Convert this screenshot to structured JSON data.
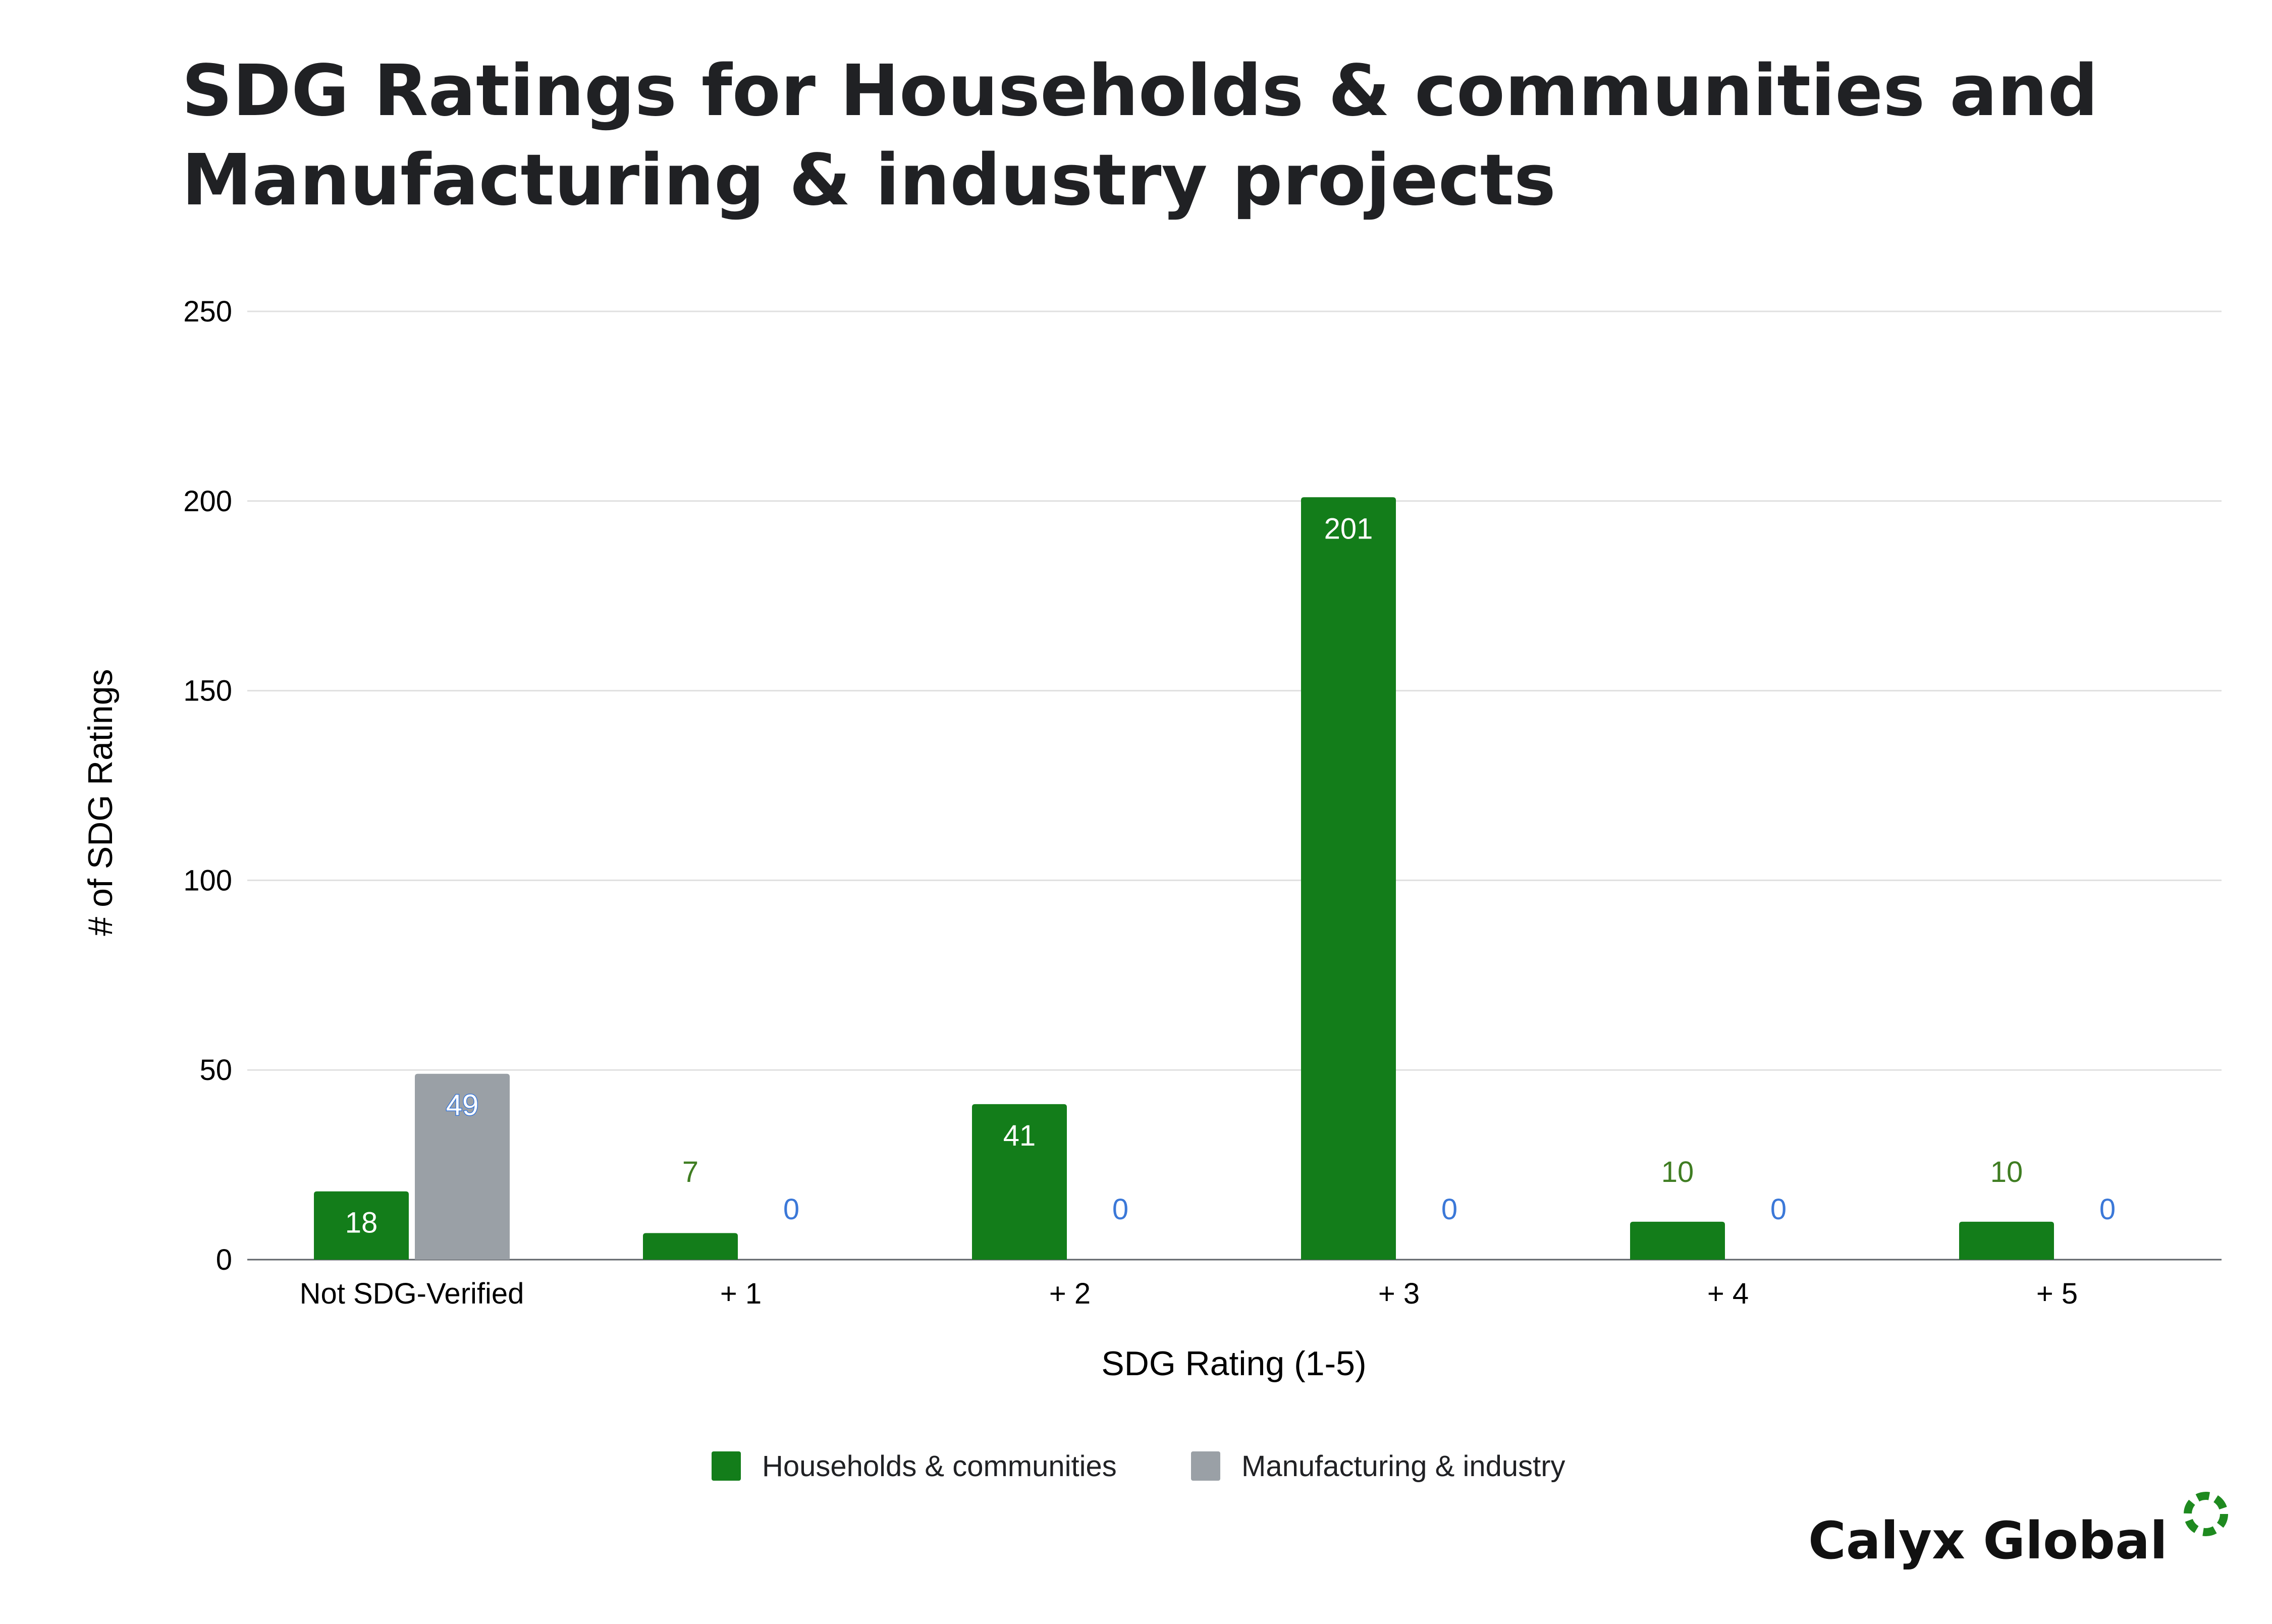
{
  "chart_data": {
    "type": "bar",
    "title_lines": [
      "SDG Ratings for Households & communities and",
      "Manufacturing & industry projects"
    ],
    "xlabel": "SDG Rating (1-5)",
    "ylabel": "# of SDG Ratings",
    "categories": [
      "Not SDG-Verified",
      "+ 1",
      "+ 2",
      "+ 3",
      "+ 4",
      "+ 5"
    ],
    "series": [
      {
        "name": "Households & communities",
        "color": "#137d1a",
        "values": [
          18,
          7,
          41,
          201,
          10,
          10
        ]
      },
      {
        "name": "Manufacturing & industry",
        "color": "#9aa0a6",
        "values": [
          49,
          0,
          0,
          0,
          0,
          0
        ]
      }
    ],
    "ylim": [
      0,
      250
    ],
    "yticks": [
      0,
      50,
      100,
      150,
      200,
      250
    ],
    "grid": true,
    "legend_position": "bottom"
  },
  "colors": {
    "gridline": "#e0e0e0",
    "baseline": "#5f6368",
    "label_inside": "#ffffff",
    "label_outside_series1": "#3f7d22",
    "label_outside_series2": "#3b78d8",
    "logo_ring": "#1e8a1f"
  },
  "brand": {
    "name": "Calyx Global",
    "icon": "dashed-ring-logo-icon"
  }
}
